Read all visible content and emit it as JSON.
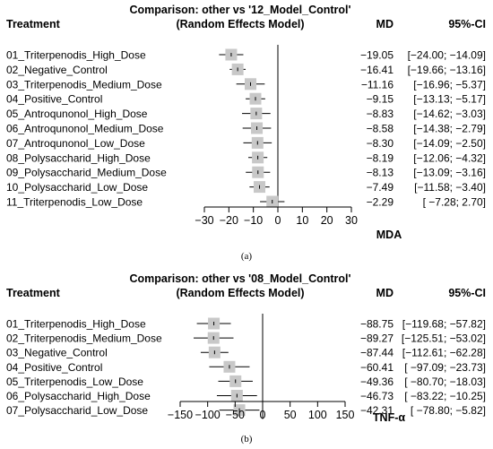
{
  "panels": [
    {
      "caption": "(a)",
      "title_line1": "Comparison: other vs '12_Model_Control'",
      "title_line2": "(Random Effects Model)",
      "treatment_header": "Treatment",
      "md_header": "MD",
      "ci_header": "95%-CI",
      "axis_title": "MDA",
      "chart_data": {
        "type": "forest",
        "title": "Comparison: other vs '12_Model_Control'",
        "xlabel": "MDA",
        "xlim": [
          -30,
          30
        ],
        "ticks": [
          -30,
          -20,
          -10,
          0,
          10,
          20,
          30
        ],
        "tick_labels": [
          "−30",
          "−20",
          "−10",
          "0",
          "10",
          "20",
          "30"
        ],
        "reference_line": 0,
        "rows": [
          {
            "label": "01_Triterpenodis_High_Dose",
            "md": -19.05,
            "lo": -24.0,
            "hi": -14.09,
            "md_text": "−19.05",
            "ci_text": "[−24.00; −14.09]"
          },
          {
            "label": "02_Negative_Control",
            "md": -16.41,
            "lo": -19.66,
            "hi": -13.16,
            "md_text": "−16.41",
            "ci_text": "[−19.66; −13.16]"
          },
          {
            "label": "03_Triterpenodis_Medium_Dose",
            "md": -11.16,
            "lo": -16.96,
            "hi": -5.37,
            "md_text": "−11.16",
            "ci_text": "[−16.96;  −5.37]"
          },
          {
            "label": "04_Positive_Control",
            "md": -9.15,
            "lo": -13.13,
            "hi": -5.17,
            "md_text": "−9.15",
            "ci_text": "[−13.13;  −5.17]"
          },
          {
            "label": "05_Antroqunonol_High_Dose",
            "md": -8.83,
            "lo": -14.62,
            "hi": -3.03,
            "md_text": "−8.83",
            "ci_text": "[−14.62;  −3.03]"
          },
          {
            "label": "06_Antroqunonol_Medium_Dose",
            "md": -8.58,
            "lo": -14.38,
            "hi": -2.79,
            "md_text": "−8.58",
            "ci_text": "[−14.38;  −2.79]"
          },
          {
            "label": "07_Antroqunonol_Low_Dose",
            "md": -8.3,
            "lo": -14.09,
            "hi": -2.5,
            "md_text": "−8.30",
            "ci_text": "[−14.09;  −2.50]"
          },
          {
            "label": "08_Polysaccharid_High_Dose",
            "md": -8.19,
            "lo": -12.06,
            "hi": -4.32,
            "md_text": "−8.19",
            "ci_text": "[−12.06;  −4.32]"
          },
          {
            "label": "09_Polysaccharid_Medium_Dose",
            "md": -8.13,
            "lo": -13.09,
            "hi": -3.16,
            "md_text": "−8.13",
            "ci_text": "[−13.09;  −3.16]"
          },
          {
            "label": "10_Polysaccharid_Low_Dose",
            "md": -7.49,
            "lo": -11.58,
            "hi": -3.4,
            "md_text": "−7.49",
            "ci_text": "[−11.58;  −3.40]"
          },
          {
            "label": "11_Triterpenodis_Low_Dose",
            "md": -2.29,
            "lo": -7.28,
            "hi": 2.7,
            "md_text": "−2.29",
            "ci_text": "[ −7.28;   2.70]"
          }
        ]
      }
    },
    {
      "caption": "(b)",
      "title_line1": "Comparison: other vs '08_Model_Control'",
      "title_line2": "(Random Effects Model)",
      "treatment_header": "Treatment",
      "md_header": "MD",
      "ci_header": "95%-CI",
      "axis_title": "TNF-α",
      "chart_data": {
        "type": "forest",
        "title": "Comparison: other vs '08_Model_Control'",
        "xlabel": "TNF-α",
        "xlim": [
          -150,
          150
        ],
        "ticks": [
          -150,
          -100,
          -50,
          0,
          50,
          100,
          150
        ],
        "tick_labels": [
          "−150",
          "−100",
          "−50",
          "0",
          "50",
          "100",
          "150"
        ],
        "reference_line": 0,
        "rows": [
          {
            "label": "01_Triterpenodis_High_Dose",
            "md": -88.75,
            "lo": -119.68,
            "hi": -57.82,
            "md_text": "−88.75",
            "ci_text": "[−119.68; −57.82]"
          },
          {
            "label": "02_Triterpenodis_Medium_Dose",
            "md": -89.27,
            "lo": -125.51,
            "hi": -53.02,
            "md_text": "−89.27",
            "ci_text": "[−125.51; −53.02]"
          },
          {
            "label": "03_Negative_Control",
            "md": -87.44,
            "lo": -112.61,
            "hi": -62.28,
            "md_text": "−87.44",
            "ci_text": "[−112.61; −62.28]"
          },
          {
            "label": "04_Positive_Control",
            "md": -60.41,
            "lo": -97.09,
            "hi": -23.73,
            "md_text": "−60.41",
            "ci_text": "[ −97.09; −23.73]"
          },
          {
            "label": "05_Triterpenodis_Low_Dose",
            "md": -49.36,
            "lo": -80.7,
            "hi": -18.03,
            "md_text": "−49.36",
            "ci_text": "[ −80.70; −18.03]"
          },
          {
            "label": "06_Polysaccharid_High_Dose",
            "md": -46.73,
            "lo": -83.22,
            "hi": -10.25,
            "md_text": "−46.73",
            "ci_text": "[ −83.22; −10.25]"
          },
          {
            "label": "07_Polysaccharid_Low_Dose",
            "md": -42.31,
            "lo": -78.8,
            "hi": -5.82,
            "md_text": "−42.31",
            "ci_text": "[ −78.80;  −5.82]"
          }
        ]
      }
    }
  ]
}
